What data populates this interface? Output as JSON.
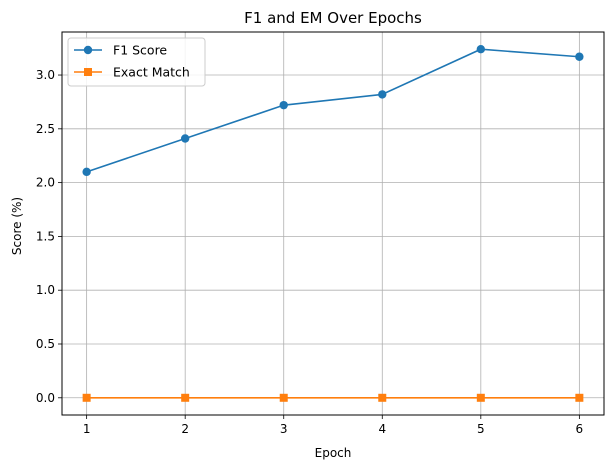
{
  "chart_data": {
    "type": "line",
    "title": "F1 and EM Over Epochs",
    "xlabel": "Epoch",
    "ylabel": "Score (%)",
    "x": [
      1,
      2,
      3,
      4,
      5,
      6
    ],
    "xlim": [
      0.75,
      6.25
    ],
    "ylim": [
      -0.16,
      3.4
    ],
    "xticks": [
      1,
      2,
      3,
      4,
      5,
      6
    ],
    "yticks": [
      0.0,
      0.5,
      1.0,
      1.5,
      2.0,
      2.5,
      3.0
    ],
    "ytick_labels": [
      "0.0",
      "0.5",
      "1.0",
      "1.5",
      "2.0",
      "2.5",
      "3.0"
    ],
    "grid": true,
    "legend_position": "top-left",
    "series": [
      {
        "name": "F1 Score",
        "values": [
          2.1,
          2.41,
          2.72,
          2.82,
          3.24,
          3.17
        ],
        "color": "#1f77b4",
        "marker": "circle"
      },
      {
        "name": "Exact Match",
        "values": [
          0.0,
          0.0,
          0.0,
          0.0,
          0.0,
          0.0
        ],
        "color": "#ff7f0e",
        "marker": "square"
      }
    ]
  }
}
